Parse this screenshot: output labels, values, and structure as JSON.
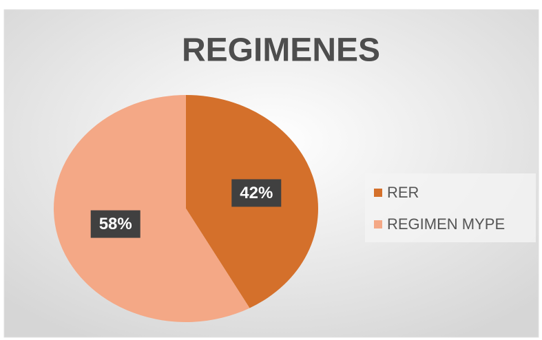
{
  "chart_data": {
    "type": "pie",
    "title": "REGIMENES",
    "categories": [
      "RER",
      "REGIMEN MYPE"
    ],
    "values": [
      42,
      58
    ],
    "value_labels": [
      "42%",
      "58%"
    ],
    "colors": [
      "#d4702b",
      "#f4a886"
    ],
    "legend": "right"
  }
}
